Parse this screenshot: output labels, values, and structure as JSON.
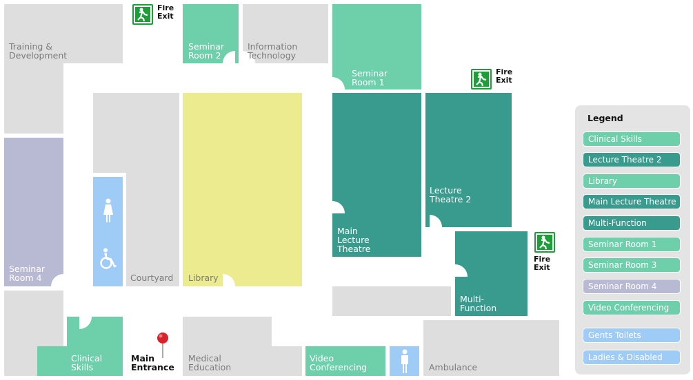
{
  "rooms": {
    "training": "Training &\nDevelopment",
    "seminar2": "Seminar\nRoom 2",
    "infotech": "Information\nTechnology",
    "seminar1": "Seminar\nRoom 1",
    "seminar4": "Seminar\nRoom 4",
    "courtyard": "Courtyard",
    "library": "Library",
    "main_lecture": "Main\nLecture\nTheatre",
    "lecture2": "Lecture\nTheatre 2",
    "multi": "Multi-\nFunction",
    "clinical": "Clinical\nSkills",
    "main_entrance": "Main\nEntrance",
    "medical": "Medical\nEducation",
    "video": "Video\nConferencing",
    "ambulance": "Ambulance"
  },
  "fire_exit_label": "Fire\nExit",
  "icons": [
    "female-toilet-icon",
    "wheelchair-icon",
    "male-toilet-icon",
    "fire-exit-icon",
    "location-pin-icon"
  ],
  "legend": {
    "title": "Legend",
    "items": [
      {
        "label": "Clinical Skills",
        "color": "#6dd0aa"
      },
      {
        "label": "Lecture Theatre 2",
        "color": "#389b8d"
      },
      {
        "label": "Library",
        "color": "#6dd0aa"
      },
      {
        "label": "Main Lecture Theatre",
        "color": "#389b8d"
      },
      {
        "label": "Multi-Function",
        "color": "#389b8d"
      },
      {
        "label": "Seminar Room 1",
        "color": "#6dd0aa"
      },
      {
        "label": "Seminar Room 3",
        "color": "#6dd0aa"
      },
      {
        "label": "Seminar Room 4",
        "color": "#b8b9d3"
      },
      {
        "label": "Video Conferencing",
        "color": "#6dd0aa"
      }
    ],
    "facilities": [
      {
        "label": "Gents Toilets",
        "color": "#9fcbf7"
      },
      {
        "label": "Ladies & Disabled",
        "color": "#9fcbf7"
      }
    ]
  },
  "colors": {
    "grey": "#dedede",
    "teal_light": "#6dd0aa",
    "teal_dark": "#389b8d",
    "yellow": "#eceb8f",
    "lavender": "#b8b9d3",
    "blue": "#9fcbf7",
    "exit_green": "#1e9e38",
    "pin_red": "#d9232a"
  }
}
